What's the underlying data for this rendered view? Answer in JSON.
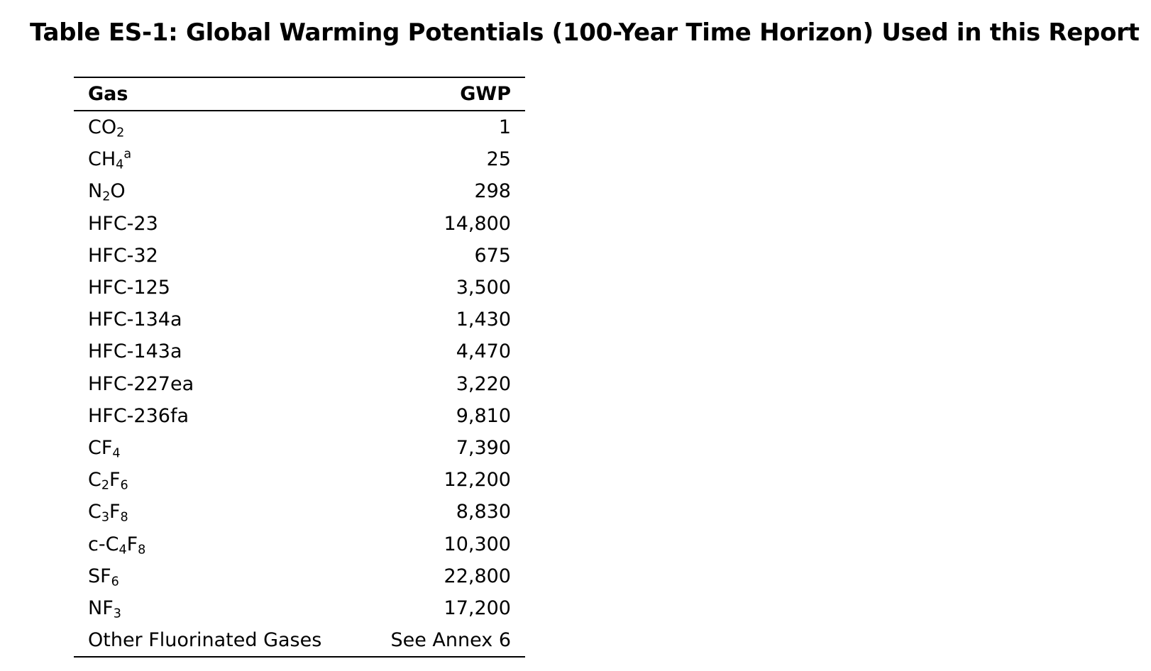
{
  "title": "Table ES-1:  Global Warming Potentials (100-Year Time Horizon) Used in this Report",
  "table": {
    "headers": {
      "gas": "Gas",
      "gwp": "GWP"
    },
    "rows": [
      {
        "gas": [
          {
            "t": "CO"
          },
          {
            "t": "2",
            "sub": true
          }
        ],
        "gwp": "1"
      },
      {
        "gas": [
          {
            "t": "CH"
          },
          {
            "t": "4",
            "sub": true
          },
          {
            "t": "a",
            "sup": true
          }
        ],
        "gwp": "25"
      },
      {
        "gas": [
          {
            "t": "N"
          },
          {
            "t": "2",
            "sub": true
          },
          {
            "t": "O"
          }
        ],
        "gwp": "298"
      },
      {
        "gas": [
          {
            "t": "HFC-23"
          }
        ],
        "gwp": "14,800"
      },
      {
        "gas": [
          {
            "t": "HFC-32"
          }
        ],
        "gwp": "675"
      },
      {
        "gas": [
          {
            "t": "HFC-125"
          }
        ],
        "gwp": "3,500"
      },
      {
        "gas": [
          {
            "t": "HFC-134a"
          }
        ],
        "gwp": "1,430"
      },
      {
        "gas": [
          {
            "t": "HFC-143a"
          }
        ],
        "gwp": "4,470"
      },
      {
        "gas": [
          {
            "t": "HFC-227ea"
          }
        ],
        "gwp": "3,220"
      },
      {
        "gas": [
          {
            "t": "HFC-236fa"
          }
        ],
        "gwp": "9,810"
      },
      {
        "gas": [
          {
            "t": "CF"
          },
          {
            "t": "4",
            "sub": true
          }
        ],
        "gwp": "7,390"
      },
      {
        "gas": [
          {
            "t": "C"
          },
          {
            "t": "2",
            "sub": true
          },
          {
            "t": "F"
          },
          {
            "t": "6",
            "sub": true
          }
        ],
        "gwp": "12,200"
      },
      {
        "gas": [
          {
            "t": "C"
          },
          {
            "t": "3",
            "sub": true
          },
          {
            "t": "F"
          },
          {
            "t": "8",
            "sub": true
          }
        ],
        "gwp": "8,830"
      },
      {
        "gas": [
          {
            "t": "c-C"
          },
          {
            "t": "4",
            "sub": true
          },
          {
            "t": "F"
          },
          {
            "t": "8",
            "sub": true
          }
        ],
        "gwp": "10,300"
      },
      {
        "gas": [
          {
            "t": "SF"
          },
          {
            "t": "6",
            "sub": true
          }
        ],
        "gwp": "22,800"
      },
      {
        "gas": [
          {
            "t": "NF"
          },
          {
            "t": "3",
            "sub": true
          }
        ],
        "gwp": "17,200"
      },
      {
        "gas": [
          {
            "t": "Other Fluorinated Gases"
          }
        ],
        "gwp": "See Annex 6"
      }
    ]
  }
}
